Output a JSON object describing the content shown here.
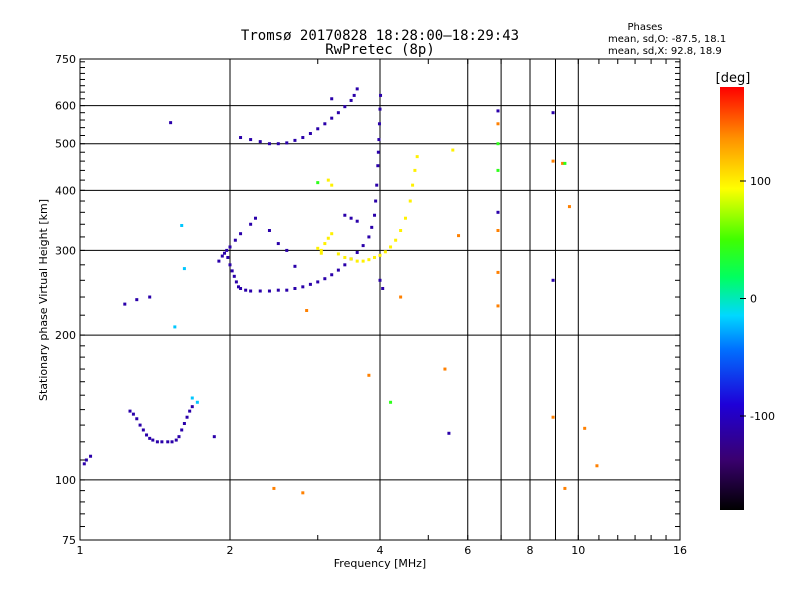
{
  "chart_data": {
    "type": "scatter",
    "title": "Tromsø 20170828 18:28:00–18:29:43",
    "subtitle": "RwPretec (8p)",
    "info_header": "Phases",
    "info_lines": [
      "mean, sd,O: -87.5, 18.1",
      "mean, sd,X:  92.8, 18.9"
    ],
    "xlabel": "Frequency [MHz]",
    "ylabel": "Stationary phase Virtual Height [km]",
    "xscale": "log",
    "yscale": "log",
    "xlim": [
      1,
      16
    ],
    "ylim": [
      75,
      750
    ],
    "xticks": [
      1,
      2,
      4,
      6,
      8,
      10,
      16
    ],
    "xtick_labels": [
      "1",
      "2",
      "4",
      "6",
      "8",
      "10",
      "16"
    ],
    "xgrid": [
      2,
      4,
      6,
      7,
      8,
      9,
      10
    ],
    "yticks": [
      75,
      100,
      200,
      300,
      400,
      500,
      600,
      750
    ],
    "ytick_labels": [
      "75",
      "100",
      "200",
      "300",
      "400",
      "500",
      "600",
      "750"
    ],
    "ygrid": [
      100,
      200,
      300,
      400,
      500,
      600
    ],
    "colorbar": {
      "label": "[deg]",
      "range": [
        -180,
        180
      ],
      "ticks": [
        -100,
        0,
        100
      ],
      "tick_labels": [
        "-100",
        "0",
        "100"
      ]
    },
    "series": [
      {
        "color_phase": -110,
        "points": [
          [
            1.02,
            108
          ],
          [
            1.03,
            110
          ],
          [
            1.05,
            112
          ],
          [
            1.26,
            139
          ],
          [
            1.28,
            137
          ],
          [
            1.3,
            134
          ],
          [
            1.32,
            130
          ],
          [
            1.34,
            127
          ],
          [
            1.36,
            124
          ],
          [
            1.38,
            122
          ],
          [
            1.4,
            121
          ],
          [
            1.43,
            120
          ],
          [
            1.46,
            120
          ],
          [
            1.5,
            120
          ],
          [
            1.53,
            120
          ],
          [
            1.56,
            121
          ],
          [
            1.58,
            123
          ],
          [
            1.6,
            127
          ],
          [
            1.62,
            131
          ],
          [
            1.64,
            135
          ],
          [
            1.66,
            139
          ],
          [
            1.68,
            142
          ],
          [
            1.23,
            232
          ],
          [
            1.3,
            237
          ],
          [
            1.38,
            240
          ],
          [
            1.52,
            553
          ],
          [
            1.86,
            123
          ],
          [
            1.9,
            285
          ],
          [
            1.93,
            292
          ],
          [
            1.95,
            296
          ],
          [
            1.97,
            300
          ],
          [
            1.98,
            290
          ],
          [
            2.0,
            280
          ],
          [
            2.02,
            272
          ],
          [
            2.04,
            265
          ],
          [
            2.06,
            258
          ],
          [
            2.08,
            252
          ],
          [
            2.1,
            250
          ],
          [
            2.15,
            248
          ],
          [
            2.2,
            247
          ],
          [
            2.3,
            247
          ],
          [
            2.4,
            247
          ],
          [
            2.5,
            248
          ],
          [
            2.6,
            248
          ],
          [
            2.7,
            250
          ],
          [
            2.8,
            252
          ],
          [
            2.9,
            255
          ],
          [
            3.0,
            258
          ],
          [
            3.1,
            262
          ],
          [
            3.2,
            267
          ],
          [
            3.3,
            273
          ],
          [
            3.4,
            280
          ],
          [
            3.5,
            288
          ],
          [
            3.6,
            297
          ],
          [
            3.7,
            307
          ],
          [
            3.8,
            320
          ],
          [
            3.85,
            335
          ],
          [
            3.9,
            355
          ],
          [
            3.92,
            380
          ],
          [
            3.94,
            410
          ],
          [
            3.96,
            450
          ],
          [
            3.97,
            480
          ],
          [
            3.98,
            510
          ],
          [
            3.99,
            550
          ],
          [
            4.0,
            590
          ],
          [
            4.01,
            630
          ],
          [
            2.0,
            305
          ],
          [
            2.05,
            315
          ],
          [
            2.1,
            325
          ],
          [
            2.2,
            340
          ],
          [
            2.1,
            515
          ],
          [
            2.2,
            510
          ],
          [
            2.3,
            505
          ],
          [
            2.4,
            500
          ],
          [
            2.5,
            500
          ],
          [
            2.6,
            502
          ],
          [
            2.7,
            508
          ],
          [
            2.8,
            515
          ],
          [
            2.9,
            525
          ],
          [
            3.0,
            537
          ],
          [
            3.1,
            550
          ],
          [
            3.2,
            565
          ],
          [
            3.3,
            580
          ],
          [
            3.4,
            597
          ],
          [
            3.5,
            615
          ],
          [
            3.55,
            630
          ],
          [
            3.6,
            650
          ],
          [
            3.2,
            620
          ],
          [
            2.25,
            350
          ],
          [
            2.4,
            330
          ],
          [
            2.5,
            310
          ],
          [
            2.6,
            300
          ],
          [
            2.7,
            278
          ],
          [
            3.4,
            355
          ],
          [
            3.5,
            350
          ],
          [
            3.6,
            345
          ],
          [
            4.0,
            260
          ],
          [
            4.05,
            250
          ],
          [
            6.9,
            585
          ],
          [
            8.9,
            580
          ],
          [
            8.9,
            260
          ],
          [
            6.9,
            360
          ],
          [
            5.5,
            125
          ]
        ]
      },
      {
        "color_phase": -20,
        "points": [
          [
            1.55,
            208
          ],
          [
            1.62,
            275
          ],
          [
            1.6,
            338
          ],
          [
            1.68,
            148
          ],
          [
            1.72,
            145
          ]
        ]
      },
      {
        "color_phase": 100,
        "points": [
          [
            3.05,
            300
          ],
          [
            3.1,
            310
          ],
          [
            3.15,
            318
          ],
          [
            3.2,
            325
          ],
          [
            3.3,
            295
          ],
          [
            3.4,
            290
          ],
          [
            3.5,
            288
          ],
          [
            3.6,
            285
          ],
          [
            3.7,
            285
          ],
          [
            3.8,
            287
          ],
          [
            3.9,
            290
          ],
          [
            4.0,
            293
          ],
          [
            4.1,
            298
          ],
          [
            4.2,
            305
          ],
          [
            4.3,
            315
          ],
          [
            4.4,
            330
          ],
          [
            4.5,
            350
          ],
          [
            4.6,
            380
          ],
          [
            4.65,
            410
          ],
          [
            4.7,
            440
          ],
          [
            4.75,
            470
          ],
          [
            3.15,
            420
          ],
          [
            3.2,
            410
          ],
          [
            3.0,
            303
          ],
          [
            3.05,
            296
          ],
          [
            5.6,
            485
          ]
        ]
      },
      {
        "color_phase": 140,
        "points": [
          [
            2.85,
            225
          ],
          [
            3.8,
            165
          ],
          [
            4.4,
            240
          ],
          [
            5.4,
            170
          ],
          [
            5.75,
            322
          ],
          [
            6.9,
            550
          ],
          [
            6.9,
            330
          ],
          [
            6.9,
            270
          ],
          [
            6.9,
            230
          ],
          [
            8.9,
            460
          ],
          [
            8.9,
            135
          ],
          [
            9.3,
            455
          ],
          [
            9.4,
            96
          ],
          [
            9.6,
            370
          ],
          [
            10.3,
            128
          ],
          [
            10.9,
            107
          ],
          [
            2.45,
            96
          ],
          [
            2.8,
            94
          ]
        ]
      },
      {
        "color_phase": 40,
        "points": [
          [
            3.0,
            415
          ],
          [
            6.9,
            500
          ],
          [
            6.9,
            440
          ],
          [
            4.2,
            145
          ],
          [
            9.4,
            455
          ]
        ]
      }
    ]
  }
}
